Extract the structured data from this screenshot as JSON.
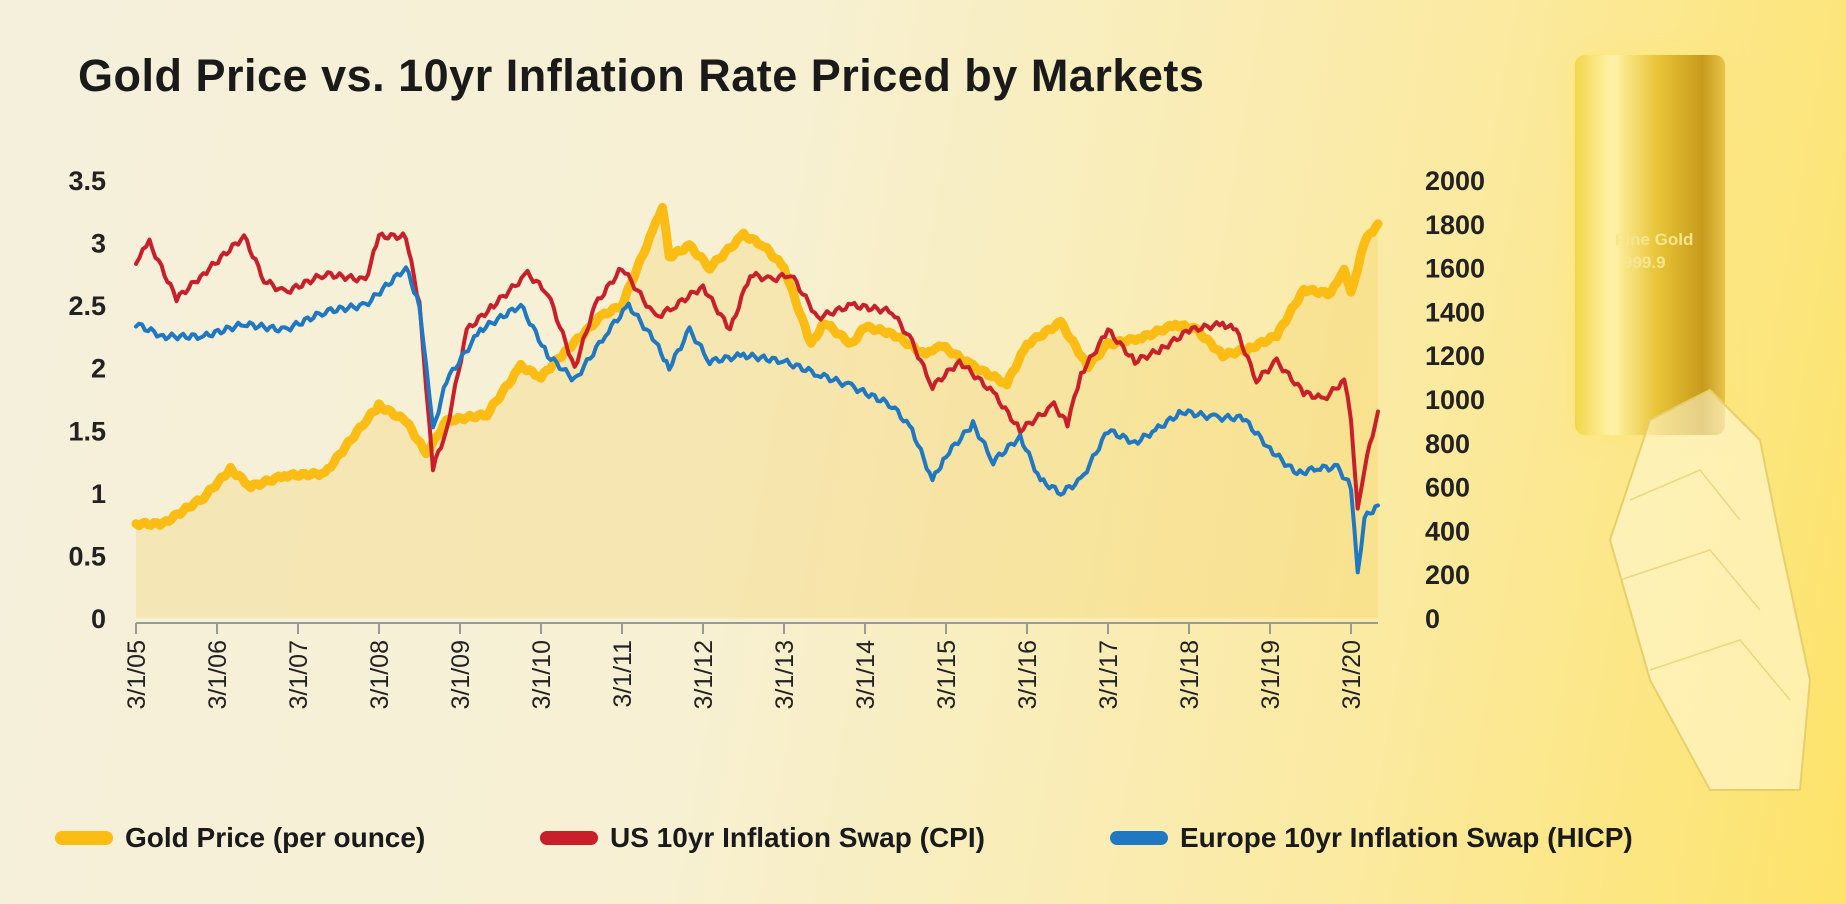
{
  "chart_data": {
    "type": "line",
    "title": "Gold Price vs. 10yr Inflation Rate Priced by Markets",
    "x_ticks": [
      "3/1/05",
      "3/1/06",
      "3/1/07",
      "3/1/08",
      "3/1/09",
      "3/1/10",
      "3/1/11",
      "3/1/12",
      "3/1/13",
      "3/1/14",
      "3/1/15",
      "3/1/16",
      "3/1/17",
      "3/1/18",
      "3/1/19",
      "3/1/20"
    ],
    "y_left": {
      "ylim": [
        0,
        3.5
      ],
      "ticks": [
        "0",
        "0.5",
        "1",
        "1.5",
        "2",
        "2.5",
        "3",
        "3.5"
      ]
    },
    "y_right": {
      "ylim": [
        0,
        2000
      ],
      "ticks": [
        "0",
        "200",
        "400",
        "600",
        "800",
        "1000",
        "1200",
        "1400",
        "1600",
        "1800",
        "2000"
      ]
    },
    "grid": false,
    "legend_position": "bottom",
    "series": [
      {
        "name": "Gold Price (per ounce)",
        "axis": "right",
        "color": "#fbbc14",
        "x": [
          "2005-03",
          "2005-07",
          "2006-01",
          "2006-05",
          "2006-08",
          "2007-01",
          "2007-07",
          "2008-01",
          "2008-03",
          "2008-07",
          "2008-10",
          "2009-01",
          "2009-07",
          "2009-12",
          "2010-03",
          "2010-07",
          "2010-12",
          "2011-03",
          "2011-08",
          "2011-09",
          "2011-10",
          "2012-01",
          "2012-04",
          "2012-09",
          "2012-12",
          "2013-03",
          "2013-07",
          "2013-09",
          "2014-01",
          "2014-03",
          "2014-07",
          "2014-12",
          "2015-02",
          "2015-07",
          "2015-12",
          "2016-03",
          "2016-08",
          "2016-12",
          "2017-03",
          "2017-08",
          "2018-01",
          "2018-04",
          "2018-08",
          "2018-12",
          "2019-04",
          "2019-08",
          "2019-12",
          "2020-02",
          "2020-03",
          "2020-05",
          "2020-07"
        ],
        "y": [
          430,
          430,
          550,
          680,
          600,
          650,
          660,
          900,
          970,
          900,
          750,
          900,
          930,
          1150,
          1100,
          1230,
          1380,
          1430,
          1800,
          1880,
          1650,
          1700,
          1600,
          1750,
          1700,
          1600,
          1250,
          1350,
          1250,
          1330,
          1300,
          1200,
          1250,
          1150,
          1070,
          1250,
          1350,
          1150,
          1250,
          1280,
          1340,
          1320,
          1200,
          1230,
          1290,
          1500,
          1480,
          1600,
          1480,
          1720,
          1800
        ]
      },
      {
        "name": "US 10yr Inflation Swap (CPI)",
        "axis": "left",
        "color": "#c8202a",
        "x": [
          "2005-03",
          "2005-05",
          "2005-09",
          "2006-01",
          "2006-07",
          "2006-10",
          "2007-01",
          "2007-07",
          "2008-01",
          "2008-03",
          "2008-07",
          "2008-09",
          "2008-11",
          "2009-01",
          "2009-04",
          "2009-08",
          "2010-01",
          "2010-04",
          "2010-08",
          "2010-11",
          "2011-03",
          "2011-08",
          "2011-11",
          "2012-03",
          "2012-07",
          "2012-10",
          "2013-01",
          "2013-04",
          "2013-08",
          "2014-01",
          "2014-07",
          "2014-10",
          "2015-01",
          "2015-05",
          "2015-10",
          "2016-02",
          "2016-07",
          "2016-09",
          "2016-11",
          "2017-03",
          "2017-07",
          "2017-11",
          "2018-03",
          "2018-08",
          "2018-10",
          "2019-01",
          "2019-04",
          "2019-08",
          "2019-11",
          "2020-02",
          "2020-03",
          "2020-04",
          "2020-05",
          "2020-07"
        ],
        "y": [
          2.85,
          3.0,
          2.55,
          2.75,
          3.05,
          2.7,
          2.6,
          2.75,
          2.7,
          3.05,
          3.05,
          2.5,
          1.2,
          1.5,
          2.3,
          2.5,
          2.75,
          2.6,
          2.0,
          2.5,
          2.8,
          2.4,
          2.5,
          2.65,
          2.3,
          2.75,
          2.7,
          2.75,
          2.4,
          2.5,
          2.45,
          2.2,
          1.85,
          2.05,
          1.8,
          1.5,
          1.7,
          1.55,
          1.95,
          2.3,
          2.05,
          2.15,
          2.3,
          2.35,
          2.3,
          1.9,
          2.05,
          1.8,
          1.75,
          1.9,
          1.6,
          0.85,
          1.2,
          1.65
        ]
      },
      {
        "name": "Europe 10yr Inflation Swap (HICP)",
        "axis": "left",
        "color": "#1f78c1",
        "x": [
          "2005-03",
          "2005-07",
          "2006-01",
          "2006-07",
          "2007-01",
          "2007-07",
          "2008-01",
          "2008-07",
          "2008-09",
          "2008-11",
          "2009-01",
          "2009-06",
          "2009-12",
          "2010-04",
          "2010-08",
          "2011-01",
          "2011-04",
          "2011-08",
          "2011-10",
          "2012-01",
          "2012-04",
          "2012-09",
          "2013-03",
          "2013-08",
          "2014-01",
          "2014-07",
          "2014-10",
          "2015-01",
          "2015-03",
          "2015-07",
          "2015-10",
          "2016-02",
          "2016-05",
          "2016-08",
          "2016-11",
          "2017-03",
          "2017-07",
          "2017-10",
          "2018-02",
          "2018-07",
          "2018-11",
          "2019-03",
          "2019-07",
          "2019-10",
          "2020-01",
          "2020-03",
          "2020-04",
          "2020-05",
          "2020-07"
        ],
        "y": [
          2.35,
          2.25,
          2.25,
          2.35,
          2.3,
          2.45,
          2.5,
          2.8,
          2.5,
          1.5,
          1.9,
          2.3,
          2.5,
          2.1,
          1.9,
          2.3,
          2.5,
          2.2,
          2.0,
          2.3,
          2.05,
          2.1,
          2.05,
          1.95,
          1.85,
          1.7,
          1.5,
          1.1,
          1.3,
          1.55,
          1.25,
          1.45,
          1.1,
          1.0,
          1.1,
          1.5,
          1.4,
          1.5,
          1.65,
          1.6,
          1.6,
          1.35,
          1.15,
          1.2,
          1.2,
          1.05,
          0.35,
          0.8,
          0.9
        ]
      }
    ]
  },
  "decoration": {
    "gold_bar_text": [
      "Fine Gold",
      "999.9"
    ]
  }
}
